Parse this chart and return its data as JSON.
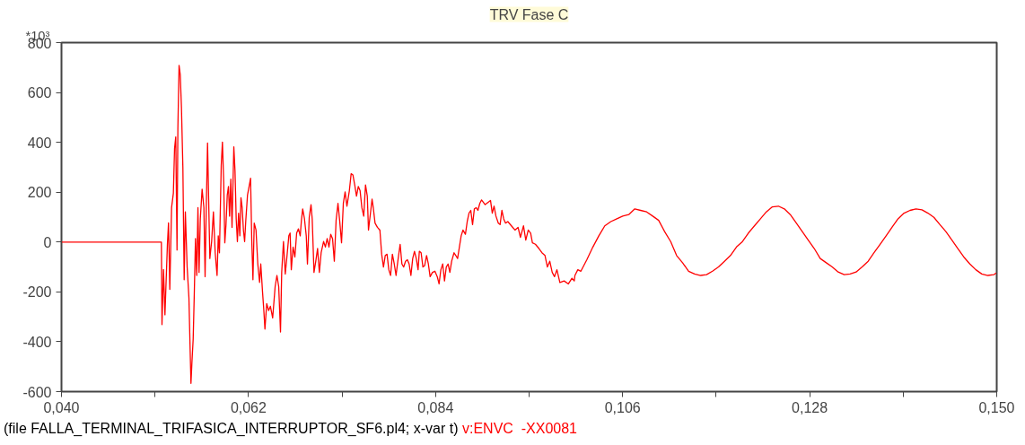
{
  "chart_data": {
    "type": "line",
    "title": "TRV Fase C",
    "ylabel": "*10³",
    "annotations": [
      "(file FALLA_TERMINAL_TRIFASICA_INTERRUPTOR_SF6.pl4; x-var t)"
    ],
    "xlim": [
      0.04,
      0.15
    ],
    "ylim": [
      -600,
      800
    ],
    "xticks": [
      {
        "value": 0.04,
        "label": "0,040"
      },
      {
        "value": 0.051,
        "label": null
      },
      {
        "value": 0.062,
        "label": "0,062"
      },
      {
        "value": 0.073,
        "label": null
      },
      {
        "value": 0.084,
        "label": "0,084"
      },
      {
        "value": 0.095,
        "label": null
      },
      {
        "value": 0.106,
        "label": "0,106"
      },
      {
        "value": 0.117,
        "label": null
      },
      {
        "value": 0.128,
        "label": "0,128"
      },
      {
        "value": 0.139,
        "label": null
      },
      {
        "value": 0.15,
        "label": "0,150"
      }
    ],
    "yticks": [
      -600,
      -400,
      -200,
      0,
      200,
      400,
      600,
      800
    ],
    "grid": false,
    "legend": false,
    "marker": "none",
    "line_style": "solid",
    "series": [
      {
        "name": "v:ENVC  -XX0081",
        "color": "#ff0000",
        "x": [
          0.04,
          0.05175,
          0.05182,
          0.052,
          0.05217,
          0.05246,
          0.05259,
          0.05274,
          0.05295,
          0.05316,
          0.0533,
          0.05344,
          0.05359,
          0.05369,
          0.05383,
          0.05397,
          0.05411,
          0.05428,
          0.05443,
          0.05457,
          0.05478,
          0.05499,
          0.05513,
          0.05523,
          0.05534,
          0.05549,
          0.05562,
          0.05576,
          0.05591,
          0.05605,
          0.05618,
          0.05633,
          0.05654,
          0.05675,
          0.05689,
          0.05703,
          0.05718,
          0.05731,
          0.05745,
          0.05766,
          0.05787,
          0.05808,
          0.0583,
          0.05844,
          0.05858,
          0.05879,
          0.05893,
          0.05908,
          0.05921,
          0.05935,
          0.0595,
          0.05964,
          0.05977,
          0.05992,
          0.06006,
          0.06027,
          0.06041,
          0.06055,
          0.06069,
          0.06083,
          0.06098,
          0.06111,
          0.06125,
          0.0614,
          0.06154,
          0.06167,
          0.06188,
          0.0621,
          0.06224,
          0.06238,
          0.06252,
          0.06267,
          0.06288,
          0.06309,
          0.0633,
          0.06344,
          0.06365,
          0.06379,
          0.06393,
          0.06414,
          0.06436,
          0.06457,
          0.06484,
          0.06513,
          0.06534,
          0.06555,
          0.06576,
          0.0659,
          0.06611,
          0.06632,
          0.06653,
          0.06674,
          0.06689,
          0.06703,
          0.06724,
          0.06745,
          0.06766,
          0.06787,
          0.06808,
          0.06822,
          0.06837,
          0.06858,
          0.06879,
          0.06893,
          0.06914,
          0.06935,
          0.06949,
          0.0697,
          0.06991,
          0.07012,
          0.07033,
          0.07054,
          0.07083,
          0.07104,
          0.07125,
          0.07146,
          0.07167,
          0.07188,
          0.07209,
          0.0723,
          0.07252,
          0.07273,
          0.07294,
          0.07315,
          0.07336,
          0.07357,
          0.07386,
          0.07407,
          0.07428,
          0.07449,
          0.0747,
          0.07491,
          0.07512,
          0.07533,
          0.07555,
          0.07576,
          0.07597,
          0.07611,
          0.07632,
          0.07653,
          0.07667,
          0.07688,
          0.07716,
          0.07745,
          0.07766,
          0.07787,
          0.07808,
          0.07829,
          0.0785,
          0.07871,
          0.07892,
          0.07914,
          0.07935,
          0.07956,
          0.07983,
          0.08004,
          0.08025,
          0.08047,
          0.08068,
          0.08089,
          0.0811,
          0.08131,
          0.08152,
          0.08173,
          0.08194,
          0.08209,
          0.0823,
          0.08251,
          0.08272,
          0.08294,
          0.08315,
          0.08336,
          0.08363,
          0.08392,
          0.0842,
          0.08441,
          0.08462,
          0.08484,
          0.08505,
          0.08526,
          0.08547,
          0.08568,
          0.08589,
          0.08617,
          0.08638,
          0.08659,
          0.0868,
          0.08701,
          0.08722,
          0.08751,
          0.08772,
          0.08793,
          0.08814,
          0.08835,
          0.08856,
          0.08877,
          0.08898,
          0.0892,
          0.08941,
          0.08983,
          0.09025,
          0.09046,
          0.09067,
          0.09088,
          0.0911,
          0.09138,
          0.09159,
          0.0918,
          0.09201,
          0.09223,
          0.0925,
          0.09292,
          0.09334,
          0.0937,
          0.09398,
          0.09434,
          0.09461,
          0.0949,
          0.09518,
          0.09539,
          0.09574,
          0.09616,
          0.09651,
          0.09687,
          0.09715,
          0.09743,
          0.09772,
          0.09799,
          0.09827,
          0.09862,
          0.09912,
          0.09962,
          0.10004,
          0.10031,
          0.10039,
          0.10073,
          0.10109,
          0.10179,
          0.1025,
          0.1032,
          0.1039,
          0.10461,
          0.10532,
          0.10601,
          0.10672,
          0.10743,
          0.10812,
          0.10883,
          0.10954,
          0.11024,
          0.11094,
          0.11165,
          0.11235,
          0.11305,
          0.11376,
          0.11446,
          0.11517,
          0.11587,
          0.11657,
          0.11728,
          0.11798,
          0.11868,
          0.11939,
          0.1201,
          0.12079,
          0.1215,
          0.12221,
          0.1229,
          0.12361,
          0.12432,
          0.12502,
          0.12572,
          0.12643,
          0.12713,
          0.12783,
          0.12854,
          0.12924,
          0.12995,
          0.13065,
          0.13135,
          0.13206,
          0.13276,
          0.13346,
          0.13417,
          0.13488,
          0.13557,
          0.13628,
          0.13699,
          0.13768,
          0.13839,
          0.1391,
          0.1398,
          0.1405,
          0.14121,
          0.14191,
          0.14261,
          0.14332,
          0.14402,
          0.14473,
          0.14543,
          0.14613,
          0.14684,
          0.14754,
          0.14824,
          0.14895,
          0.14966,
          0.14993
        ],
        "values": [
          0,
          0,
          -331,
          -110,
          -292,
          -8,
          77,
          -190,
          138,
          196,
          376,
          422,
          -32,
          456,
          709,
          671,
          541,
          297,
          -151,
          121,
          -100,
          -224,
          -429,
          -567,
          -485,
          -389,
          -207,
          14,
          -134,
          138,
          -122,
          93,
          212,
          138,
          -139,
          138,
          397,
          172,
          -66,
          2,
          121,
          -43,
          -134,
          25,
          -43,
          308,
          401,
          240,
          -3,
          70,
          189,
          223,
          104,
          252,
          59,
          382,
          286,
          93,
          2,
          116,
          25,
          178,
          138,
          48,
          2,
          82,
          189,
          229,
          256,
          8,
          -151,
          76,
          48,
          -88,
          -162,
          -88,
          -202,
          -270,
          -349,
          -247,
          -275,
          -258,
          -304,
          -179,
          -134,
          -179,
          -361,
          -122,
          2,
          -128,
          -54,
          25,
          36,
          -111,
          -20,
          -60,
          36,
          53,
          25,
          87,
          133,
          93,
          25,
          -88,
          99,
          150,
          93,
          -122,
          -77,
          -26,
          -122,
          -43,
          2,
          -20,
          14,
          -20,
          31,
          14,
          -77,
          87,
          155,
          82,
          -3,
          155,
          201,
          144,
          206,
          274,
          269,
          229,
          184,
          223,
          206,
          138,
          104,
          229,
          184,
          48,
          110,
          172,
          138,
          76,
          59,
          48,
          -49,
          -100,
          -54,
          -49,
          -111,
          -134,
          -49,
          -88,
          -134,
          -77,
          -9,
          -88,
          -100,
          -77,
          -71,
          -88,
          -134,
          -66,
          -37,
          -66,
          -111,
          -37,
          -43,
          -100,
          -94,
          -54,
          -88,
          -139,
          -122,
          -117,
          -139,
          -168,
          -111,
          -88,
          -156,
          -100,
          -88,
          -122,
          -77,
          -43,
          -54,
          -66,
          -20,
          25,
          48,
          31,
          82,
          116,
          127,
          70,
          133,
          138,
          127,
          155,
          169,
          150,
          161,
          167,
          116,
          144,
          104,
          76,
          70,
          127,
          93,
          76,
          82,
          65,
          48,
          59,
          19,
          65,
          8,
          48,
          36,
          -3,
          -9,
          -26,
          -43,
          -54,
          -100,
          -77,
          -122,
          -139,
          -111,
          -162,
          -156,
          -168,
          -145,
          -156,
          -134,
          -111,
          -117,
          -71,
          -20,
          25,
          65,
          82,
          93,
          104,
          110,
          133,
          127,
          121,
          104,
          87,
          42,
          2,
          -54,
          -83,
          -117,
          -128,
          -134,
          -131,
          -117,
          -100,
          -77,
          -54,
          -20,
          2,
          36,
          65,
          93,
          121,
          141,
          144,
          133,
          110,
          76,
          42,
          8,
          -26,
          -66,
          -83,
          -100,
          -120,
          -131,
          -128,
          -120,
          -100,
          -77,
          -43,
          -9,
          25,
          59,
          93,
          116,
          127,
          133,
          129,
          116,
          99,
          70,
          42,
          8,
          -26,
          -60,
          -88,
          -111,
          -128,
          -134,
          -131,
          -124
        ]
      }
    ]
  }
}
